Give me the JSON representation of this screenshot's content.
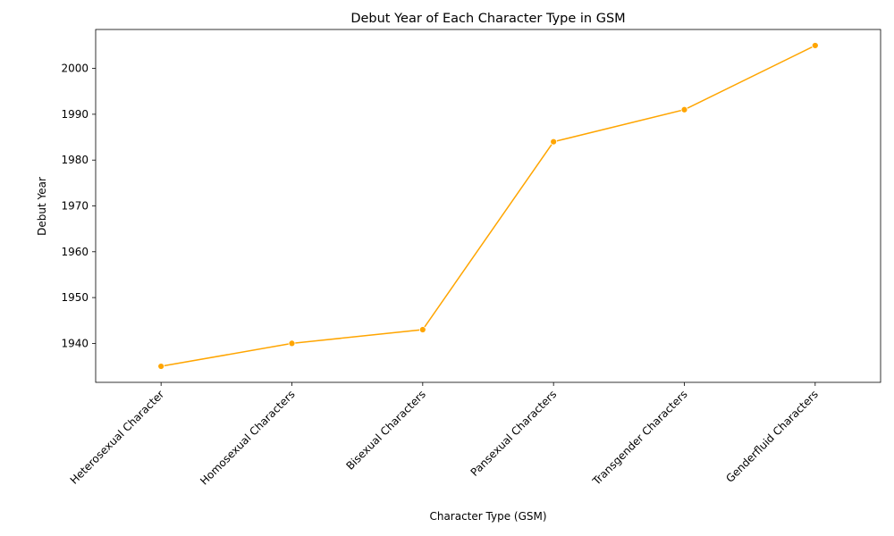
{
  "chart_data": {
    "type": "line",
    "title": "Debut Year of Each Character Type in GSM",
    "xlabel": "Character Type (GSM)",
    "ylabel": "Debut Year",
    "categories": [
      "Heterosexual Character",
      "Homosexual Characters",
      "Bisexual Characters",
      "Pansexual Characters",
      "Transgender Characters",
      "Genderfluid Characters"
    ],
    "values": [
      1935,
      1940,
      1943,
      1984,
      1991,
      2005
    ],
    "ylim": [
      1931.5,
      2008.5
    ],
    "yticks": [
      1940,
      1950,
      1960,
      1970,
      1980,
      1990,
      2000
    ],
    "grid": false,
    "legend": "none",
    "line_color": "#ffa500",
    "marker": "circle"
  }
}
